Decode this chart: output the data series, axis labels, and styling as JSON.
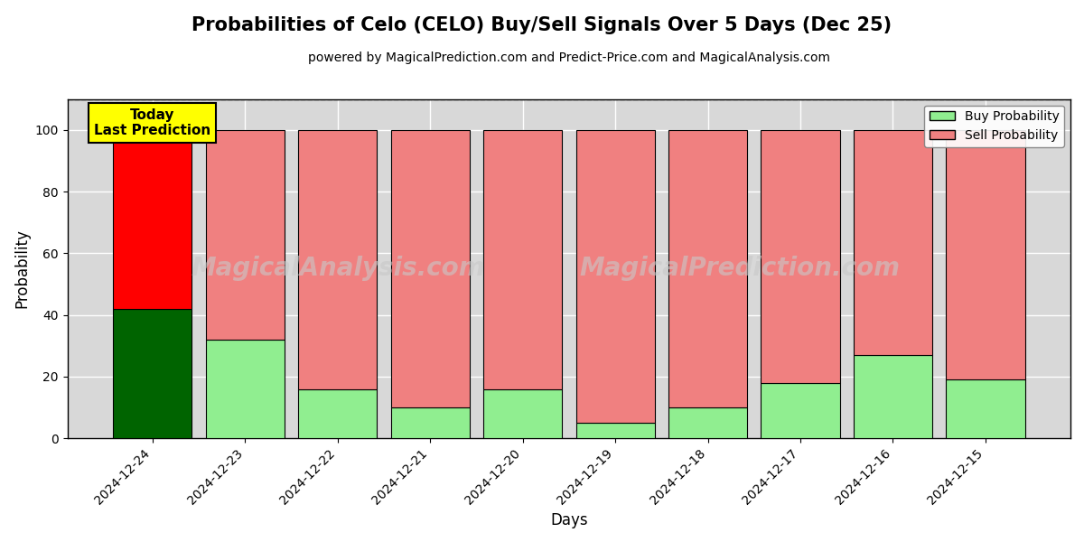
{
  "title": "Probabilities of Celo (CELO) Buy/Sell Signals Over 5 Days (Dec 25)",
  "subtitle": "powered by MagicalPrediction.com and Predict-Price.com and MagicalAnalysis.com",
  "xlabel": "Days",
  "ylabel": "Probability",
  "dates": [
    "2024-12-24",
    "2024-12-23",
    "2024-12-22",
    "2024-12-21",
    "2024-12-20",
    "2024-12-19",
    "2024-12-18",
    "2024-12-17",
    "2024-12-16",
    "2024-12-15"
  ],
  "buy_values": [
    42,
    32,
    16,
    10,
    16,
    5,
    10,
    18,
    27,
    19
  ],
  "sell_values": [
    58,
    68,
    84,
    90,
    84,
    95,
    90,
    82,
    73,
    81
  ],
  "today_buy_color": "#006400",
  "today_sell_color": "#ff0000",
  "other_buy_color": "#90EE90",
  "other_sell_color": "#F08080",
  "today_label_bg": "#ffff00",
  "today_label_text": "Today\nLast Prediction",
  "ylim": [
    0,
    110
  ],
  "dashed_line_y": 110,
  "bar_edge_color": "#000000",
  "bar_edge_width": 0.8,
  "bar_width": 0.85,
  "legend_buy_label": "Buy Probability",
  "legend_sell_label": "Sell Probability",
  "bg_color": "#ffffff",
  "grid_color": "#ffffff",
  "watermark1": "MagicalAnalysis.com",
  "watermark2": "MagicalPrediction.com"
}
